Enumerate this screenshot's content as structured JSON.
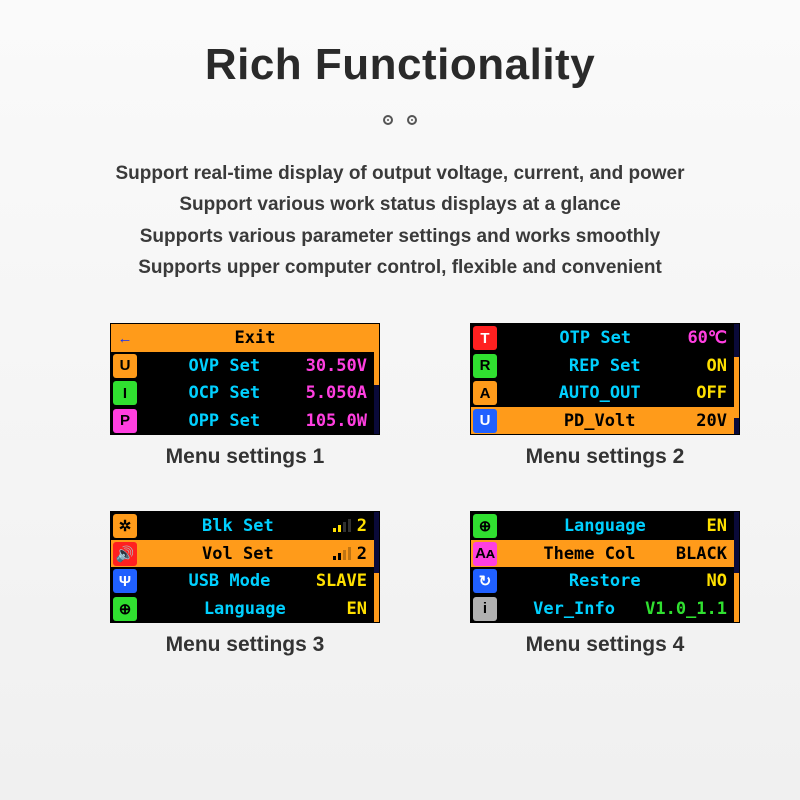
{
  "colors": {
    "highlight_bg": "#ff9b1a",
    "screen_bg": "#000000",
    "scrollbar_track": "#0a0a3a",
    "scrollbar_thumb": "#ff9b1a",
    "text_on_highlight": "#000000",
    "label_default": "#00d0ff",
    "value_magenta": "#ff3fe0",
    "value_yellow": "#ffe000",
    "value_green": "#30e030"
  },
  "title": "Rich Functionality",
  "description": [
    "Support real-time display of output voltage, current, and power",
    "Support various work status displays at a glance",
    "Supports various parameter settings and works smoothly",
    "Supports upper computer control, flexible and convenient"
  ],
  "screens": [
    {
      "caption": "Menu settings 1",
      "scroll": {
        "top_pct": 0,
        "height_pct": 55
      },
      "rows": [
        {
          "icon_bg": "#ff9b1a",
          "icon_fg": "#1030ff",
          "icon": "←",
          "label": "Exit",
          "value": "",
          "highlight": true,
          "label_color": "#000000",
          "value_color": "#000000"
        },
        {
          "icon_bg": "#ff9b1a",
          "icon_fg": "#000000",
          "icon": "U",
          "label": "OVP Set",
          "value": "30.50V",
          "label_color": "#00d0ff",
          "value_color": "#ff3fe0"
        },
        {
          "icon_bg": "#30e030",
          "icon_fg": "#000000",
          "icon": "I",
          "label": "OCP Set",
          "value": "5.050A",
          "label_color": "#00d0ff",
          "value_color": "#ff3fe0"
        },
        {
          "icon_bg": "#ff3fe0",
          "icon_fg": "#000000",
          "icon": "P",
          "label": "OPP Set",
          "value": "105.0W",
          "label_color": "#00d0ff",
          "value_color": "#ff3fe0"
        }
      ]
    },
    {
      "caption": "Menu settings 2",
      "scroll": {
        "top_pct": 30,
        "height_pct": 55
      },
      "rows": [
        {
          "icon_bg": "#ff2020",
          "icon_fg": "#ffffff",
          "icon": "T",
          "label": "OTP Set",
          "value": "60℃",
          "label_color": "#00d0ff",
          "value_color": "#ff3fe0"
        },
        {
          "icon_bg": "#30e030",
          "icon_fg": "#000000",
          "icon": "R",
          "label": "REP Set",
          "value": "ON",
          "label_color": "#00d0ff",
          "value_color": "#ffe000"
        },
        {
          "icon_bg": "#ff9b1a",
          "icon_fg": "#000000",
          "icon": "A",
          "label": "AUTO_OUT",
          "value": "OFF",
          "label_color": "#00d0ff",
          "value_color": "#ffe000"
        },
        {
          "icon_bg": "#2060ff",
          "icon_fg": "#ffffff",
          "icon": "U",
          "label": "PD_Volt",
          "value": "20V",
          "highlight": true,
          "label_color": "#000000",
          "value_color": "#000000"
        }
      ]
    },
    {
      "caption": "Menu settings 3",
      "scroll": {
        "top_pct": 55,
        "height_pct": 45
      },
      "rows": [
        {
          "icon_bg": "#ff9b1a",
          "icon_fg": "#000000",
          "icon": "✲",
          "label": "Blk Set",
          "value": "2",
          "bars": 2,
          "label_color": "#00d0ff",
          "value_color": "#ffe000"
        },
        {
          "icon_bg": "#ff2020",
          "icon_fg": "#ffffff",
          "icon": "🔊",
          "label": "Vol Set",
          "value": "2",
          "bars": 2,
          "highlight": true,
          "label_color": "#000000",
          "value_color": "#000000"
        },
        {
          "icon_bg": "#2060ff",
          "icon_fg": "#ffffff",
          "icon": "Ψ",
          "label": "USB Mode",
          "value": "SLAVE",
          "label_color": "#00d0ff",
          "value_color": "#ffe000"
        },
        {
          "icon_bg": "#30e030",
          "icon_fg": "#000000",
          "icon": "⊕",
          "label": "Language",
          "value": "EN",
          "label_color": "#00d0ff",
          "value_color": "#ffe000"
        }
      ]
    },
    {
      "caption": "Menu settings 4",
      "scroll": {
        "top_pct": 55,
        "height_pct": 45
      },
      "rows": [
        {
          "icon_bg": "#30e030",
          "icon_fg": "#000000",
          "icon": "⊕",
          "label": "Language",
          "value": "EN",
          "label_color": "#00d0ff",
          "value_color": "#ffe000"
        },
        {
          "icon_bg": "#ff3fe0",
          "icon_fg": "#000000",
          "icon": "Aᴀ",
          "label": "Theme Col",
          "value": "BLACK",
          "highlight": true,
          "label_color": "#000000",
          "value_color": "#000000"
        },
        {
          "icon_bg": "#2060ff",
          "icon_fg": "#ffffff",
          "icon": "↻",
          "label": "Restore",
          "value": "NO",
          "label_color": "#00d0ff",
          "value_color": "#ffe000"
        },
        {
          "icon_bg": "#b0b0b0",
          "icon_fg": "#000000",
          "icon": "i",
          "label": "Ver_Info",
          "value": "V1.0_1.1",
          "label_color": "#00d0ff",
          "value_color": "#30e030"
        }
      ]
    }
  ]
}
